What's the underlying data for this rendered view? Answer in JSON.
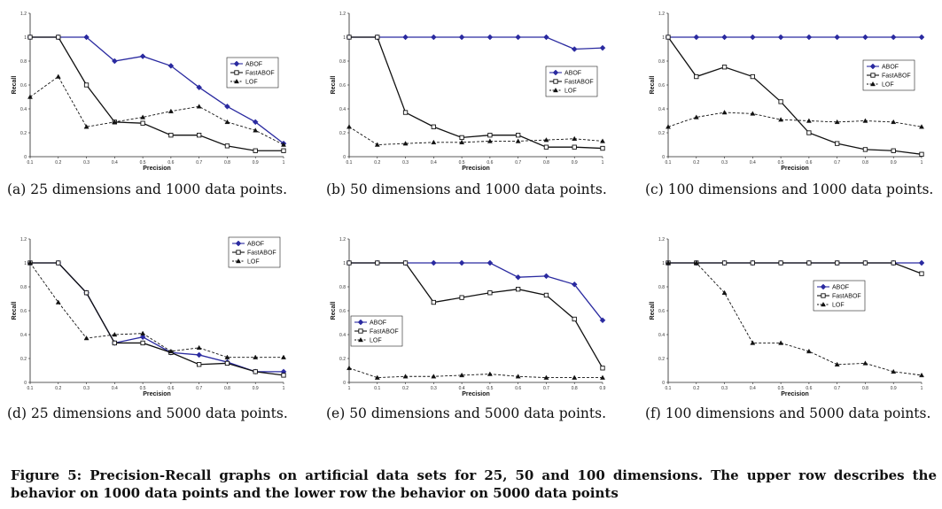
{
  "figure_caption": "Figure 5: Precision-Recall graphs on artificial data sets for 25, 50 and 100 dimensions. The upper row describes the behavior on 1000 data points and the lower row the behavior on 5000 data points",
  "colors": {
    "ABOF": "#2a2aa0",
    "FastABOF": "#111111",
    "LOF": "#111111"
  },
  "chart_data": [
    {
      "type": "line",
      "caption": "(a) 25 dimensions and 1000 data points.",
      "xlabel": "Precision",
      "ylabel": "Recall",
      "x": [
        0.1,
        0.2,
        0.3,
        0.4,
        0.5,
        0.6,
        0.7,
        0.8,
        0.9,
        1
      ],
      "xticks": [
        "0.1",
        "0.2",
        "0.3",
        "0.4",
        "0.5",
        "0.6",
        "0.7",
        "0.8",
        "0.9",
        "1"
      ],
      "yticks": [
        "0",
        "0.2",
        "0.4",
        "0.6",
        "0.8",
        "1",
        "1.2"
      ],
      "ylim": [
        0,
        1.2
      ],
      "grid": false,
      "legend_position": "right",
      "series": [
        {
          "name": "ABOF",
          "marker": "diamond",
          "dash": "solid",
          "values": [
            1,
            1,
            1,
            0.8,
            0.84,
            0.76,
            0.58,
            0.42,
            0.29,
            0.11
          ]
        },
        {
          "name": "FastABOF",
          "marker": "square",
          "dash": "solid",
          "values": [
            1,
            1,
            0.6,
            0.29,
            0.28,
            0.18,
            0.18,
            0.09,
            0.05,
            0.05
          ]
        },
        {
          "name": "LOF",
          "marker": "triangle",
          "dash": "dashed",
          "values": [
            0.5,
            0.67,
            0.25,
            0.29,
            0.33,
            0.38,
            0.42,
            0.29,
            0.22,
            0.1
          ]
        }
      ]
    },
    {
      "type": "line",
      "caption": "(b) 50 dimensions and 1000 data points.",
      "xlabel": "Precision",
      "ylabel": "Recall",
      "x": [
        0.1,
        0.2,
        0.3,
        0.4,
        0.5,
        0.6,
        0.7,
        0.8,
        0.9,
        1
      ],
      "xticks": [
        "0.1",
        "0.2",
        "0.3",
        "0.4",
        "0.5",
        "0.6",
        "0.7",
        "0.8",
        "0.9",
        "1"
      ],
      "yticks": [
        "0",
        "0.2",
        "0.4",
        "0.6",
        "0.8",
        "1",
        "1.2"
      ],
      "ylim": [
        0,
        1.2
      ],
      "grid": false,
      "legend_position": "right",
      "series": [
        {
          "name": "ABOF",
          "marker": "diamond",
          "dash": "solid",
          "values": [
            1,
            1,
            1,
            1,
            1,
            1,
            1,
            1,
            0.9,
            0.91
          ]
        },
        {
          "name": "FastABOF",
          "marker": "square",
          "dash": "solid",
          "values": [
            1,
            1,
            0.37,
            0.25,
            0.16,
            0.18,
            0.18,
            0.08,
            0.08,
            0.07
          ]
        },
        {
          "name": "LOF",
          "marker": "triangle",
          "dash": "dashed",
          "values": [
            0.25,
            0.1,
            0.11,
            0.12,
            0.12,
            0.13,
            0.13,
            0.14,
            0.15,
            0.13
          ]
        }
      ]
    },
    {
      "type": "line",
      "caption": "(c) 100 dimensions and 1000 data points.",
      "xlabel": "Precision",
      "ylabel": "Recall",
      "x": [
        0.1,
        0.2,
        0.3,
        0.4,
        0.5,
        0.6,
        0.7,
        0.8,
        0.9,
        1
      ],
      "xticks": [
        "0.1",
        "0.2",
        "0.3",
        "0.4",
        "0.5",
        "0.6",
        "0.7",
        "0.8",
        "0.9",
        "1"
      ],
      "yticks": [
        "0",
        "0.2",
        "0.4",
        "0.6",
        "0.8",
        "1",
        "1.2"
      ],
      "ylim": [
        0,
        1.2
      ],
      "grid": false,
      "legend_position": "top-right",
      "series": [
        {
          "name": "ABOF",
          "marker": "diamond",
          "dash": "solid",
          "values": [
            1,
            1,
            1,
            1,
            1,
            1,
            1,
            1,
            1,
            1
          ]
        },
        {
          "name": "FastABOF",
          "marker": "square",
          "dash": "solid",
          "values": [
            1,
            0.67,
            0.75,
            0.67,
            0.46,
            0.2,
            0.11,
            0.06,
            0.05,
            0.02
          ]
        },
        {
          "name": "LOF",
          "marker": "triangle",
          "dash": "dashed",
          "values": [
            0.25,
            0.33,
            0.37,
            0.36,
            0.31,
            0.3,
            0.29,
            0.3,
            0.29,
            0.25
          ]
        }
      ]
    },
    {
      "type": "line",
      "caption": "(d) 25 dimensions and 5000 data points.",
      "xlabel": "Precision",
      "ylabel": "Recall",
      "x": [
        0.1,
        0.2,
        0.3,
        0.4,
        0.5,
        0.6,
        0.7,
        0.8,
        0.9,
        1
      ],
      "xticks": [
        "0.1",
        "0.2",
        "0.3",
        "0.4",
        "0.5",
        "0.6",
        "0.7",
        "0.8",
        "0.9",
        "1"
      ],
      "yticks": [
        "0",
        "0.2",
        "0.4",
        "0.6",
        "0.8",
        "1",
        "1.2"
      ],
      "ylim": [
        0,
        1.2
      ],
      "grid": false,
      "legend_position": "top-right",
      "series": [
        {
          "name": "ABOF",
          "marker": "diamond",
          "dash": "solid",
          "values": [
            1,
            1,
            0.75,
            0.33,
            0.38,
            0.25,
            0.23,
            0.17,
            0.09,
            0.09
          ]
        },
        {
          "name": "FastABOF",
          "marker": "square",
          "dash": "solid",
          "values": [
            1,
            1,
            0.75,
            0.33,
            0.33,
            0.25,
            0.15,
            0.16,
            0.09,
            0.06
          ]
        },
        {
          "name": "LOF",
          "marker": "triangle",
          "dash": "dashed",
          "values": [
            1,
            0.67,
            0.37,
            0.4,
            0.41,
            0.26,
            0.29,
            0.21,
            0.21,
            0.21
          ]
        }
      ]
    },
    {
      "type": "line",
      "caption": "(e) 50 dimensions and 5000 data points.",
      "xlabel": "Precision",
      "ylabel": "Recall",
      "x": [
        0,
        1,
        2,
        3,
        4,
        5,
        6,
        7,
        8,
        9
      ],
      "xticks": [
        "1",
        "0.1",
        "0.2",
        "0.3",
        "0.4",
        "0.5",
        "0.6",
        "0.7",
        "0.8",
        "0.9"
      ],
      "yticks": [
        "0",
        "0.2",
        "0.4",
        "0.6",
        "0.8",
        "1",
        "1.2"
      ],
      "ylim": [
        0,
        1.2
      ],
      "grid": false,
      "legend_position": "left",
      "series": [
        {
          "name": "ABOF",
          "marker": "diamond",
          "dash": "solid",
          "values": [
            1,
            1,
            1,
            1,
            1,
            1,
            0.88,
            0.89,
            0.82,
            0.52
          ]
        },
        {
          "name": "FastABOF",
          "marker": "square",
          "dash": "solid",
          "values": [
            1,
            1,
            1,
            0.67,
            0.71,
            0.75,
            0.78,
            0.73,
            0.53,
            0.12
          ]
        },
        {
          "name": "LOF",
          "marker": "triangle",
          "dash": "dashed",
          "values": [
            0.12,
            0.04,
            0.05,
            0.05,
            0.06,
            0.07,
            0.05,
            0.04,
            0.04,
            0.04
          ]
        }
      ]
    },
    {
      "type": "line",
      "caption": "(f) 100 dimensions and 5000 data points.",
      "xlabel": "Precision",
      "ylabel": "Recall",
      "x": [
        0.1,
        0.2,
        0.3,
        0.4,
        0.5,
        0.6,
        0.7,
        0.8,
        0.9,
        1
      ],
      "xticks": [
        "0.1",
        "0.2",
        "0.3",
        "0.4",
        "0.5",
        "0.6",
        "0.7",
        "0.8",
        "0.9",
        "1"
      ],
      "yticks": [
        "0",
        "0.2",
        "0.4",
        "0.6",
        "0.8",
        "1",
        "1.2"
      ],
      "ylim": [
        0,
        1.2
      ],
      "grid": false,
      "legend_position": "right",
      "series": [
        {
          "name": "ABOF",
          "marker": "diamond",
          "dash": "solid",
          "values": [
            1,
            1,
            1,
            1,
            1,
            1,
            1,
            1,
            1,
            1
          ]
        },
        {
          "name": "FastABOF",
          "marker": "square",
          "dash": "solid",
          "values": [
            1,
            1,
            1,
            1,
            1,
            1,
            1,
            1,
            1,
            0.91
          ]
        },
        {
          "name": "LOF",
          "marker": "triangle",
          "dash": "dashed",
          "values": [
            1,
            1,
            0.75,
            0.33,
            0.33,
            0.26,
            0.15,
            0.16,
            0.09,
            0.06
          ]
        }
      ]
    }
  ]
}
